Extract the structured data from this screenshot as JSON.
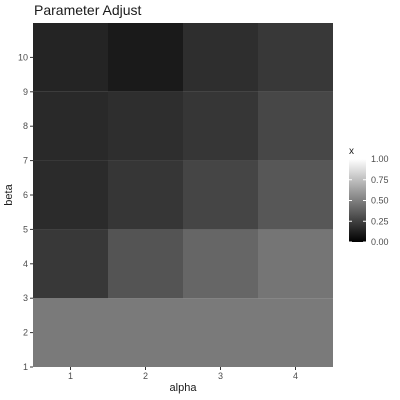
{
  "chart_data": {
    "type": "heatmap",
    "title": "Parameter Adjust",
    "xlabel": "alpha",
    "ylabel": "beta",
    "x_ticks": [
      "1",
      "2",
      "3",
      "4"
    ],
    "y_ticks": [
      "1",
      "2",
      "3",
      "4",
      "5",
      "6",
      "7",
      "8",
      "9",
      "10"
    ],
    "x_range": [
      0.5,
      4.5
    ],
    "y_range": [
      1,
      11
    ],
    "legend": {
      "title": "x",
      "placement": "right",
      "range": [
        0,
        1
      ],
      "ticks": [
        "0.00",
        "0.25",
        "0.50",
        "0.75",
        "1.00"
      ],
      "low_color": "#000000",
      "high_color": "#ffffff"
    },
    "bands": [
      {
        "y_from": 1,
        "y_to": 3,
        "values": [
          0.48,
          0.48,
          0.48,
          0.48
        ]
      },
      {
        "y_from": 3,
        "y_to": 5,
        "values": [
          0.22,
          0.33,
          0.4,
          0.46
        ]
      },
      {
        "y_from": 5,
        "y_to": 7,
        "values": [
          0.17,
          0.21,
          0.27,
          0.34
        ]
      },
      {
        "y_from": 7,
        "y_to": 9,
        "values": [
          0.16,
          0.18,
          0.21,
          0.28
        ]
      },
      {
        "y_from": 9,
        "y_to": 11,
        "values": [
          0.14,
          0.1,
          0.18,
          0.22
        ]
      }
    ],
    "grid": true
  }
}
